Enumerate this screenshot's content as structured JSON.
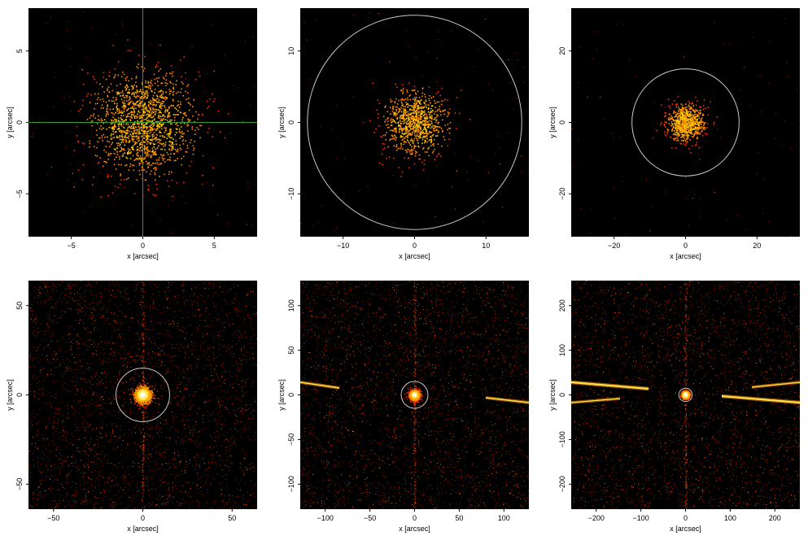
{
  "figure": {
    "type": "multi-panel x-ray image grid",
    "layout": "2 rows x 3 columns",
    "colormap": "black-red-orange-yellow-white (heat)",
    "background_color": "#000000",
    "overlay_color": "#c8c8c8",
    "crosshair_color": "#2e9e2e"
  },
  "chart_data": [
    {
      "type": "heatmap",
      "xlabel": "x [arcsec]",
      "ylabel": "y [arcsec]",
      "xlim": [
        -8,
        8
      ],
      "ylim": [
        -8,
        8
      ],
      "xticks": [
        -5,
        0,
        5
      ],
      "yticks": [
        -5,
        0,
        5
      ],
      "xtick_labels": [
        "−5",
        "0",
        "5"
      ],
      "ytick_labels": [
        "−5",
        "0",
        "5"
      ],
      "overlay": {
        "kind": "crosshair",
        "center": [
          0,
          0
        ]
      },
      "source_spread": 1.8,
      "background_level": "low",
      "streaks": false
    },
    {
      "type": "heatmap",
      "xlabel": "x [arcsec]",
      "ylabel": "y [arcsec]",
      "xlim": [
        -16,
        16
      ],
      "ylim": [
        -16,
        16
      ],
      "xticks": [
        -10,
        0,
        10
      ],
      "yticks": [
        -10,
        0,
        10
      ],
      "xtick_labels": [
        "−10",
        "0",
        "10"
      ],
      "ytick_labels": [
        "−10",
        "0",
        "10"
      ],
      "overlay": {
        "kind": "circle",
        "center": [
          0,
          0
        ],
        "radius": 15
      },
      "source_spread": 2.2,
      "background_level": "low",
      "streaks": false
    },
    {
      "type": "heatmap",
      "xlabel": "x [arcsec]",
      "ylabel": "y [arcsec]",
      "xlim": [
        -32,
        32
      ],
      "ylim": [
        -32,
        32
      ],
      "xticks": [
        -20,
        0,
        20
      ],
      "yticks": [
        -20,
        0,
        20
      ],
      "xtick_labels": [
        "−20",
        "0",
        "20"
      ],
      "ytick_labels": [
        "−20",
        "0",
        "20"
      ],
      "overlay": {
        "kind": "circle",
        "center": [
          0,
          0
        ],
        "radius": 15
      },
      "source_spread": 2.5,
      "background_level": "low",
      "streaks": false
    },
    {
      "type": "heatmap",
      "xlabel": "x [arcsec]",
      "ylabel": "y [arcsec]",
      "xlim": [
        -64,
        64
      ],
      "ylim": [
        -64,
        64
      ],
      "xticks": [
        -50,
        0,
        50
      ],
      "yticks": [
        -50,
        0,
        50
      ],
      "xtick_labels": [
        "−50",
        "0",
        "50"
      ],
      "ytick_labels": [
        "−50",
        "0",
        "50"
      ],
      "overlay": {
        "kind": "circle",
        "center": [
          0,
          0
        ],
        "radius": 15
      },
      "source_spread": 2.5,
      "background_level": "medium",
      "streaks": false,
      "readout_streak": "vertical"
    },
    {
      "type": "heatmap",
      "xlabel": "x [arcsec]",
      "ylabel": "y [arcsec]",
      "xlim": [
        -128,
        128
      ],
      "ylim": [
        -128,
        128
      ],
      "xticks": [
        -100,
        -50,
        0,
        50,
        100
      ],
      "yticks": [
        -100,
        -50,
        0,
        50,
        100
      ],
      "xtick_labels": [
        "−100",
        "−50",
        "0",
        "50",
        "100"
      ],
      "ytick_labels": [
        "−100",
        "−50",
        "0",
        "50",
        "100"
      ],
      "overlay": {
        "kind": "circle",
        "center": [
          0,
          0
        ],
        "radius": 15
      },
      "source_spread": 3,
      "background_level": "medium",
      "streaks": true,
      "readout_streak": "vertical"
    },
    {
      "type": "heatmap",
      "xlabel": "x [arcsec]",
      "ylabel": "y [arcsec]",
      "xlim": [
        -256,
        256
      ],
      "ylim": [
        -256,
        256
      ],
      "xticks": [
        -200,
        -100,
        0,
        100,
        200
      ],
      "yticks": [
        -200,
        -100,
        0,
        100,
        200
      ],
      "xtick_labels": [
        "−200",
        "−100",
        "0",
        "100",
        "200"
      ],
      "ytick_labels": [
        "−200",
        "−100",
        "0",
        "100",
        "200"
      ],
      "overlay": {
        "kind": "circle",
        "center": [
          0,
          0
        ],
        "radius": 15
      },
      "source_spread": 4,
      "background_level": "medium",
      "streaks": true,
      "readout_streak": "vertical"
    }
  ]
}
